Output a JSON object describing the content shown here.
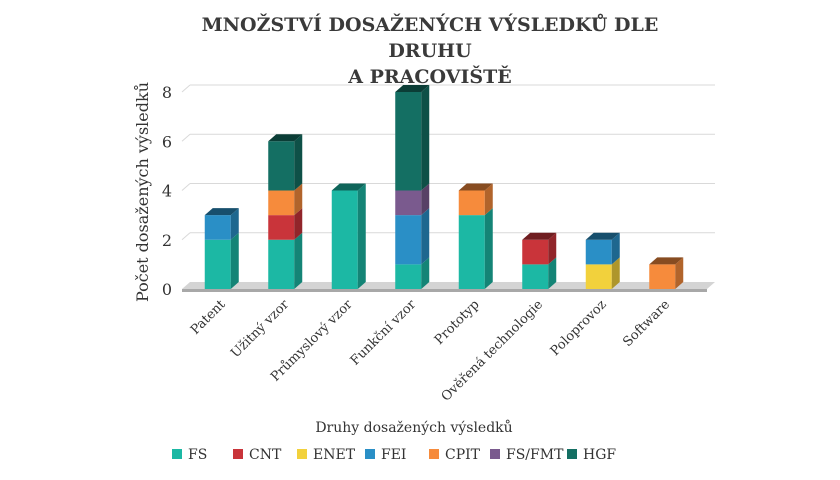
{
  "chart_data": {
    "type": "bar",
    "stacked": true,
    "title_line1": "MNOŽSTVÍ DOSAŽENÝCH VÝSLEDKŮ DLE DRUHU",
    "title_line2": "A PRACOVIŠTĚ",
    "xlabel": "Druhy dosažených výsledků",
    "ylabel": "Počet dosažených výsledků",
    "ylim": [
      0,
      8
    ],
    "yticks": [
      "0",
      "2",
      "4",
      "6",
      "8"
    ],
    "grid": true,
    "legend_position": "bottom",
    "categories": [
      "Patent",
      "Užitný vzor",
      "Průmyslový vzor",
      "Funkční vzor",
      "Prototyp",
      "Ověřená technologie",
      "Poloprovoz",
      "Software"
    ],
    "series": [
      {
        "name": "FS",
        "color": "#1cb8a4",
        "values": [
          2,
          2,
          4,
          1,
          3,
          1,
          0,
          0
        ]
      },
      {
        "name": "CNT",
        "color": "#c9343a",
        "values": [
          0,
          1,
          0,
          0,
          0,
          1,
          0,
          0
        ]
      },
      {
        "name": "ENET",
        "color": "#f2d13c",
        "values": [
          0,
          0,
          0,
          0,
          0,
          0,
          1,
          0
        ]
      },
      {
        "name": "FEI",
        "color": "#2a8fc6",
        "values": [
          1,
          0,
          0,
          2,
          0,
          0,
          1,
          0
        ]
      },
      {
        "name": "CPIT",
        "color": "#f68b3c",
        "values": [
          0,
          1,
          0,
          0,
          1,
          0,
          0,
          1
        ]
      },
      {
        "name": "FS/FMT",
        "color": "#7a5a8e",
        "values": [
          0,
          0,
          0,
          1,
          0,
          0,
          0,
          0
        ]
      },
      {
        "name": "HGF",
        "color": "#146f63",
        "values": [
          0,
          2,
          0,
          4,
          0,
          0,
          0,
          0
        ]
      }
    ]
  }
}
